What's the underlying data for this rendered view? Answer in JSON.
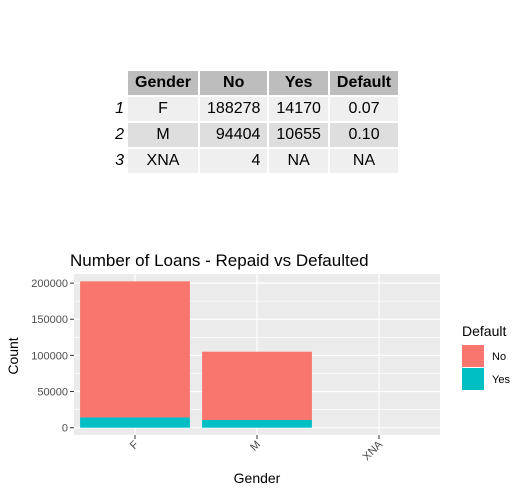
{
  "table": {
    "columns": [
      "Gender",
      "No",
      "Yes",
      "Default"
    ],
    "rows": [
      {
        "rowname": "1",
        "cells": [
          "F",
          "188278",
          "14170",
          "0.07"
        ]
      },
      {
        "rowname": "2",
        "cells": [
          "M",
          "94404",
          "10655",
          "0.10"
        ]
      },
      {
        "rowname": "3",
        "cells": [
          "XNA",
          "4",
          "NA",
          "NA"
        ]
      }
    ]
  },
  "chart_data": {
    "type": "bar",
    "stacked": true,
    "title": "Number of Loans - Repaid vs Defaulted",
    "xlabel": "Gender",
    "ylabel": "Count",
    "categories": [
      "F",
      "M",
      "XNA"
    ],
    "series": [
      {
        "name": "No",
        "color": "#F8766D",
        "values": [
          188278,
          94404,
          4
        ]
      },
      {
        "name": "Yes",
        "color": "#00BFC4",
        "values": [
          14170,
          10655,
          0
        ]
      }
    ],
    "yticks": [
      0,
      50000,
      100000,
      150000,
      200000
    ],
    "ylim": [
      -10122,
      212570
    ],
    "legend": {
      "title": "Default",
      "position": "right"
    },
    "grid": true,
    "background": "#EBEBEB"
  }
}
